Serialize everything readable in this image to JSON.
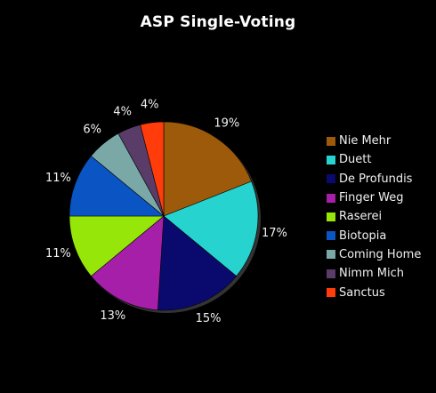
{
  "chart_data": {
    "type": "pie",
    "title": "ASP Single-Voting",
    "legend_position": "right",
    "slices": [
      {
        "label": "Nie Mehr",
        "value": 19,
        "display": "19%",
        "color": "#9c5a0a"
      },
      {
        "label": "Duett",
        "value": 17,
        "display": "17%",
        "color": "#26d3cf"
      },
      {
        "label": "De Profundis",
        "value": 15,
        "display": "15%",
        "color": "#0a0a6e"
      },
      {
        "label": "Finger Weg",
        "value": 13,
        "display": "13%",
        "color": "#a51fa8"
      },
      {
        "label": "Raserei",
        "value": 11,
        "display": "11%",
        "color": "#96e60a"
      },
      {
        "label": "Biotopia",
        "value": 11,
        "display": "11%",
        "color": "#0a55c3"
      },
      {
        "label": "Coming Home",
        "value": 6,
        "display": "6%",
        "color": "#7aa8a6"
      },
      {
        "label": "Nimm Mich",
        "value": 4,
        "display": "4%",
        "color": "#5a3c69"
      },
      {
        "label": "Sanctus",
        "value": 4,
        "display": "4%",
        "color": "#ff3c0a"
      }
    ]
  }
}
